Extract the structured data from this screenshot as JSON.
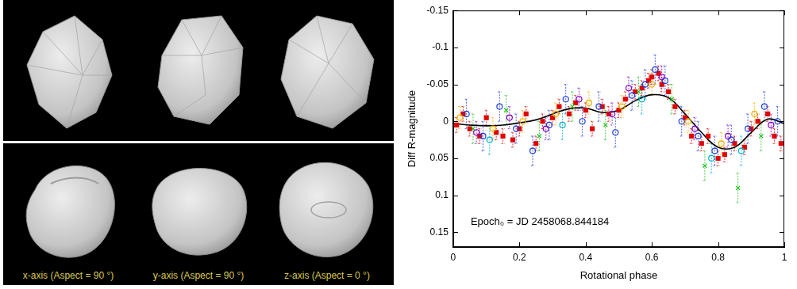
{
  "shape_model_views": {
    "labels": [
      "x-axis (Aspect = 90 °)",
      "y-axis (Aspect = 90 °)",
      "z-axis (Aspect = 0 °)"
    ]
  },
  "chart_data": {
    "type": "scatter",
    "x_label": "Rotational phase",
    "y_label": "Diff R-magnitude",
    "annotations": [
      "Epoch₀ = JD 2458068.844184"
    ],
    "xlim": [
      0,
      1
    ],
    "xticks": [
      0,
      0.2,
      0.4,
      0.6,
      0.8,
      1
    ],
    "ylim": [
      0.17,
      -0.15
    ],
    "yticks": [
      -0.15,
      -0.1,
      -0.05,
      0,
      0.05,
      0.1,
      0.15
    ],
    "grid": false,
    "series": [
      {
        "color": "#8000c0",
        "marker": "circle_open",
        "error": 0.015,
        "x": [
          0.07,
          0.17,
          0.28,
          0.38,
          0.48,
          0.53,
          0.63,
          0.73,
          0.83,
          0.96
        ],
        "values": [
          0.015,
          -0.005,
          0.01,
          -0.03,
          -0.01,
          -0.045,
          -0.06,
          0.01,
          0.02,
          0.005
        ]
      },
      {
        "color": "#f0b000",
        "marker": "circle_open",
        "error": 0.015,
        "x": [
          0.02,
          0.12,
          0.21,
          0.31,
          0.41,
          0.51,
          0.6,
          0.71,
          0.81,
          0.91
        ],
        "values": [
          -0.005,
          0.01,
          0,
          -0.01,
          -0.025,
          -0.02,
          -0.05,
          0,
          0.03,
          -0.01
        ]
      },
      {
        "color": "#20c020",
        "marker": "cross",
        "error": 0.02,
        "x": [
          0.06,
          0.16,
          0.26,
          0.36,
          0.46,
          0.56,
          0.66,
          0.76,
          0.86,
          0.93
        ],
        "values": [
          0.01,
          -0.015,
          0.02,
          -0.02,
          0.005,
          -0.04,
          -0.03,
          0.06,
          0.09,
          0.02
        ]
      },
      {
        "color": "#00b0d0",
        "marker": "circle_open",
        "error": 0.02,
        "x": [
          0.11,
          0.33,
          0.57,
          0.78,
          0.87
        ],
        "values": [
          0.025,
          0.005,
          -0.03,
          0.05,
          0.04
        ]
      },
      {
        "color": "#2040e0",
        "marker": "circle_open",
        "error": 0.02,
        "x": [
          0.04,
          0.09,
          0.14,
          0.19,
          0.24,
          0.29,
          0.34,
          0.39,
          0.44,
          0.49,
          0.54,
          0.58,
          0.61,
          0.64,
          0.69,
          0.74,
          0.79,
          0.84,
          0.89,
          0.94,
          0.98
        ],
        "values": [
          -0.01,
          0.02,
          -0.02,
          0.01,
          0.04,
          0.005,
          -0.03,
          0,
          -0.02,
          0.015,
          -0.035,
          -0.05,
          -0.07,
          -0.055,
          0,
          0.02,
          0.04,
          0.025,
          0.01,
          -0.02,
          0
        ]
      },
      {
        "color": "#e00000",
        "marker": "square",
        "error": 0.01,
        "x": [
          0.01,
          0.03,
          0.05,
          0.08,
          0.1,
          0.13,
          0.15,
          0.18,
          0.2,
          0.22,
          0.25,
          0.27,
          0.3,
          0.32,
          0.35,
          0.37,
          0.4,
          0.42,
          0.45,
          0.47,
          0.5,
          0.52,
          0.55,
          0.57,
          0.59,
          0.6,
          0.62,
          0.63,
          0.65,
          0.67,
          0.7,
          0.72,
          0.75,
          0.77,
          0.8,
          0.82,
          0.85,
          0.88,
          0.9,
          0.92,
          0.95,
          0.97,
          0.99
        ],
        "values": [
          0.005,
          -0.01,
          0.01,
          0.02,
          -0.005,
          0.015,
          0.02,
          0.025,
          0.01,
          -0.01,
          0.03,
          0,
          -0.005,
          -0.02,
          -0.01,
          -0.025,
          -0.015,
          0.01,
          -0.02,
          -0.01,
          -0.015,
          -0.03,
          -0.04,
          -0.045,
          -0.055,
          -0.06,
          -0.065,
          -0.05,
          -0.04,
          -0.02,
          -0.005,
          0.02,
          0.03,
          0.02,
          0.05,
          0.045,
          0.03,
          0.035,
          0.01,
          0,
          -0.01,
          0.02,
          0.03
        ]
      },
      {
        "type": "line",
        "color": "#000000",
        "marker": "none",
        "line_style": "solid",
        "x": [
          0,
          0.05,
          0.1,
          0.15,
          0.2,
          0.25,
          0.3,
          0.35,
          0.4,
          0.45,
          0.5,
          0.55,
          0.6,
          0.65,
          0.7,
          0.75,
          0.8,
          0.85,
          0.9,
          0.95,
          1
        ],
        "values": [
          0.003,
          0.005,
          0.006,
          0.005,
          0.002,
          -0.002,
          -0.01,
          -0.017,
          -0.018,
          -0.012,
          -0.015,
          -0.028,
          -0.036,
          -0.032,
          -0.01,
          0.015,
          0.035,
          0.035,
          0.015,
          -0.003,
          0.003
        ]
      }
    ]
  }
}
